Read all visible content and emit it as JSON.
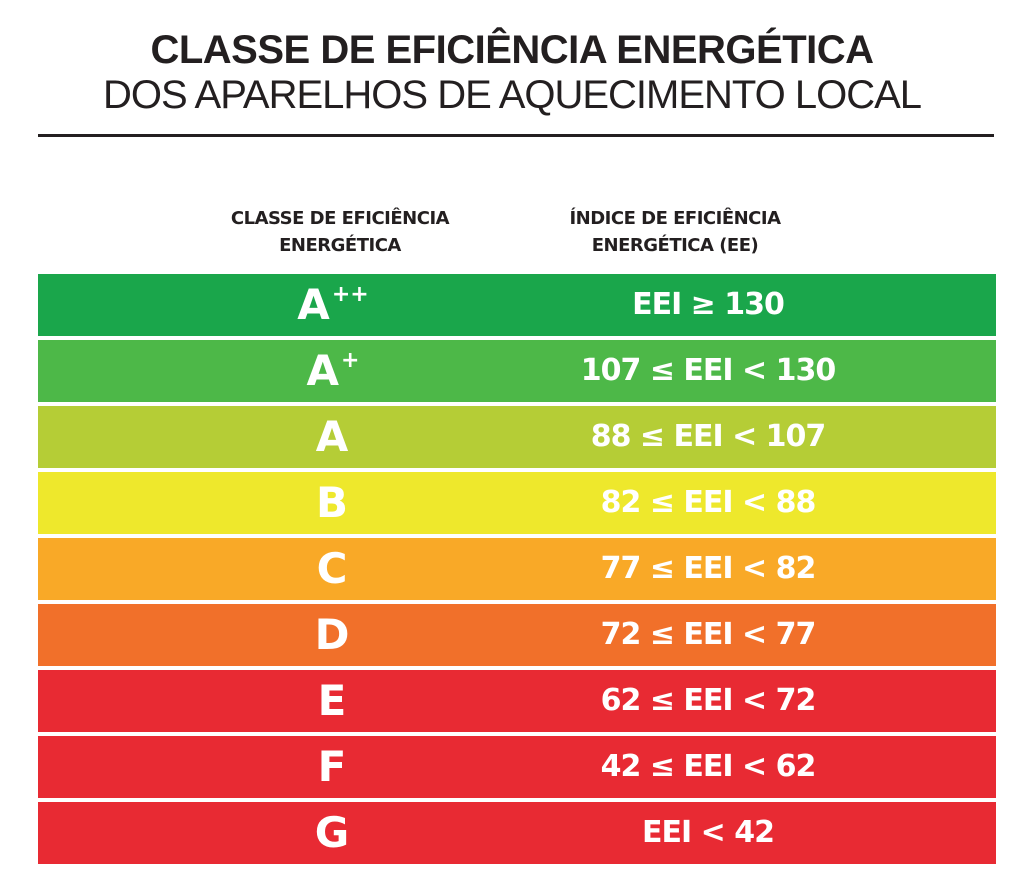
{
  "title": {
    "line1": "CLASSE DE EFICIÊNCIA ENERGÉTICA",
    "line2": "DOS APARELHOS DE AQUECIMENTO LOCAL"
  },
  "headers": {
    "class_line1": "CLASSE DE EFICIÊNCIA",
    "class_line2": "ENERGÉTICA",
    "index_line1": "ÍNDICE DE EFICIÊNCIA",
    "index_line2": "ENERGÉTICA (EE)"
  },
  "rows": [
    {
      "class_base": "A",
      "class_sup": "++",
      "range": "EEI ≥ 130",
      "color": "#1aa64b"
    },
    {
      "class_base": "A",
      "class_sup": "+",
      "range": "107 ≤ EEI < 130",
      "color": "#4db848"
    },
    {
      "class_base": "A",
      "class_sup": "",
      "range": "88 ≤ EEI < 107",
      "color": "#b5cd36"
    },
    {
      "class_base": "B",
      "class_sup": "",
      "range": "82 ≤ EEI < 88",
      "color": "#eee82c"
    },
    {
      "class_base": "C",
      "class_sup": "",
      "range": "77 ≤ EEI < 82",
      "color": "#f9a927"
    },
    {
      "class_base": "D",
      "class_sup": "",
      "range": "72 ≤ EEI < 77",
      "color": "#f1702a"
    },
    {
      "class_base": "E",
      "class_sup": "",
      "range": "62 ≤ EEI < 72",
      "color": "#e82a33"
    },
    {
      "class_base": "F",
      "class_sup": "",
      "range": "42 ≤ EEI < 62",
      "color": "#e82a33"
    },
    {
      "class_base": "G",
      "class_sup": "",
      "range": "EEI < 42",
      "color": "#e82a33"
    }
  ]
}
